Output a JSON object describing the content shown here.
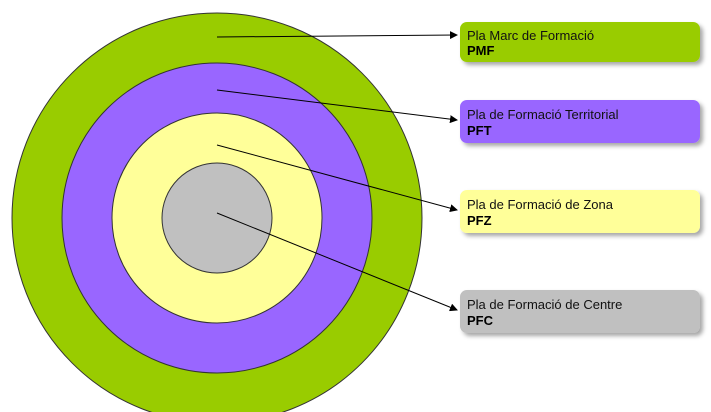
{
  "nodes": [
    {
      "label": "Pla Marc de Formació",
      "code": "PMF"
    },
    {
      "label": "Pla de Formació Territorial",
      "code": "PFT"
    },
    {
      "label": "Pla de Formació de Zona",
      "code": "PFZ"
    },
    {
      "label": "Pla de Formació de Centre",
      "code": "PFC"
    }
  ]
}
